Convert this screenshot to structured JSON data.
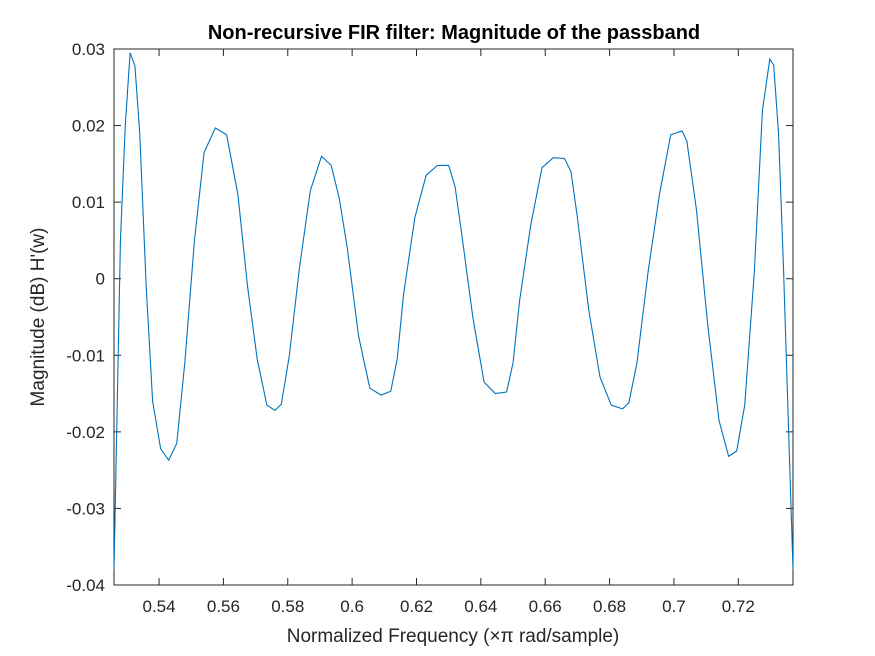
{
  "chart_data": {
    "type": "line",
    "title": "Non-recursive FIR filter: Magnitude of the passband",
    "xlabel": "Normalized Frequency (×π rad/sample)",
    "ylabel": "Magnitude (dB) H'(w)",
    "xlim": [
      0.526,
      0.737
    ],
    "ylim": [
      -0.04,
      0.03
    ],
    "x_ticks": [
      0.54,
      0.56,
      0.58,
      0.6,
      0.62,
      0.64,
      0.66,
      0.68,
      0.7,
      0.72
    ],
    "x_tick_labels": [
      "0.54",
      "0.56",
      "0.58",
      "0.6",
      "0.62",
      "0.64",
      "0.66",
      "0.68",
      "0.7",
      "0.72"
    ],
    "y_ticks": [
      -0.04,
      -0.03,
      -0.02,
      -0.01,
      0,
      0.01,
      0.02,
      0.03
    ],
    "y_tick_labels": [
      "-0.04",
      "-0.03",
      "-0.02",
      "-0.01",
      "0",
      "0.01",
      "0.02",
      "0.03"
    ],
    "grid": false,
    "color": "#0072BD",
    "x": [
      0.526,
      0.528,
      0.5295,
      0.531,
      0.5325,
      0.534,
      0.536,
      0.538,
      0.5405,
      0.543,
      0.5455,
      0.548,
      0.551,
      0.554,
      0.5575,
      0.561,
      0.5645,
      0.5675,
      0.5705,
      0.5735,
      0.576,
      0.578,
      0.5805,
      0.5835,
      0.587,
      0.5905,
      0.5935,
      0.596,
      0.5985,
      0.602,
      0.6055,
      0.609,
      0.612,
      0.614,
      0.616,
      0.6195,
      0.623,
      0.6265,
      0.63,
      0.632,
      0.634,
      0.6375,
      0.641,
      0.6445,
      0.648,
      0.65,
      0.652,
      0.6555,
      0.659,
      0.6625,
      0.666,
      0.668,
      0.67,
      0.6735,
      0.677,
      0.6805,
      0.684,
      0.686,
      0.6885,
      0.692,
      0.6955,
      0.699,
      0.7025,
      0.704,
      0.707,
      0.7105,
      0.714,
      0.717,
      0.7195,
      0.722,
      0.725,
      0.7275,
      0.7298,
      0.731,
      0.7325,
      0.734,
      0.7355,
      0.737
    ],
    "y": [
      -0.038,
      0.005,
      0.02,
      0.0295,
      0.0278,
      0.019,
      -0.001,
      -0.016,
      -0.0222,
      -0.0237,
      -0.0215,
      -0.011,
      0.005,
      0.0165,
      0.0197,
      0.0188,
      0.011,
      -0.001,
      -0.0105,
      -0.0165,
      -0.0172,
      -0.0164,
      -0.01,
      0.001,
      0.0115,
      0.016,
      0.0148,
      0.0105,
      0.004,
      -0.0075,
      -0.0143,
      -0.0152,
      -0.0147,
      -0.0105,
      -0.002,
      0.008,
      0.0135,
      0.0148,
      0.0148,
      0.012,
      0.006,
      -0.005,
      -0.0135,
      -0.015,
      -0.0148,
      -0.011,
      -0.003,
      0.007,
      0.0145,
      0.0158,
      0.0157,
      0.014,
      0.008,
      -0.004,
      -0.0128,
      -0.0165,
      -0.017,
      -0.0162,
      -0.011,
      0.001,
      0.011,
      0.0188,
      0.0193,
      0.018,
      0.009,
      -0.006,
      -0.0185,
      -0.0232,
      -0.0225,
      -0.0165,
      0.001,
      0.022,
      0.0287,
      0.0279,
      0.019,
      0.002,
      -0.018,
      -0.038
    ]
  }
}
